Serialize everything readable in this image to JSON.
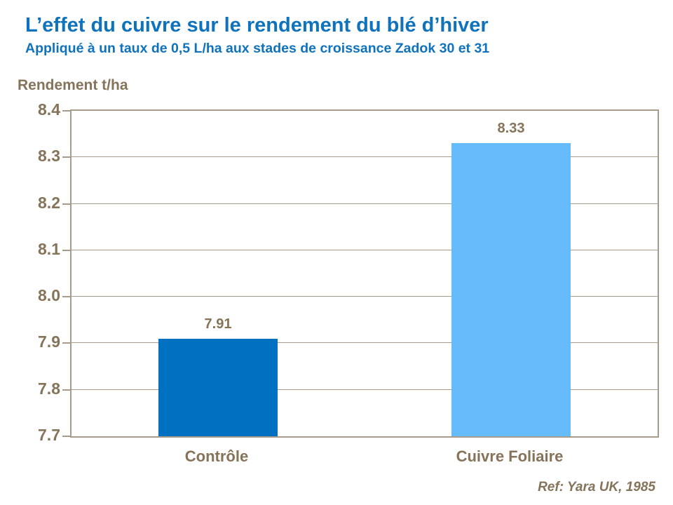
{
  "page": {
    "title": "L’effet du cuivre sur le rendement du blé d’hiver",
    "subtitle": "Appliqué à un taux de 0,5 L/ha aux stades de croissance Zadok 30 et 31",
    "reference": "Ref: Yara UK, 1985"
  },
  "colors": {
    "title_blue": "#0f72bc",
    "axis_text": "#85735a",
    "grid_line": "#a79b8b",
    "bar_control": "#0070c0",
    "bar_copper_foliar": "#66bcfb",
    "background": "#ffffff"
  },
  "chart_data": {
    "type": "bar",
    "title": "L’effet du cuivre sur le rendement du blé d’hiver",
    "subtitle": "Appliqué à un taux de 0,5 L/ha aux stades de croissance Zadok 30 et 31",
    "ylabel": "Rendement t/ha",
    "xlabel": "",
    "categories": [
      "Contrôle",
      "Cuivre Foliaire"
    ],
    "values": [
      7.91,
      8.33
    ],
    "value_labels": [
      "7.91",
      "8.33"
    ],
    "bar_colors": [
      "#0070c0",
      "#66bcfb"
    ],
    "ylim": [
      7.7,
      8.4
    ],
    "ytick_step": 0.1,
    "ytick_labels": [
      "8.4",
      "8.3",
      "8.2",
      "8.1",
      "8.0",
      "7.9",
      "7.8",
      "7.7"
    ],
    "grid": true,
    "legend": false,
    "annotation": "Ref: Yara UK, 1985"
  }
}
